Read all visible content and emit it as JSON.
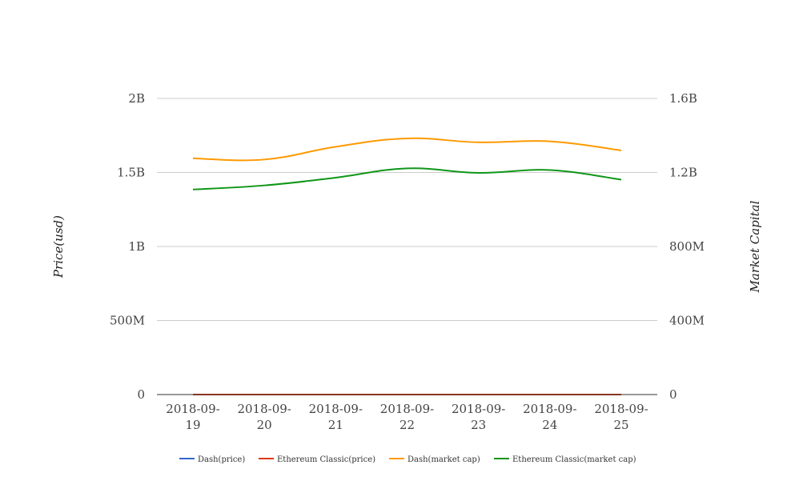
{
  "chart_data": {
    "type": "line",
    "categories": [
      "2018-09-19",
      "2018-09-20",
      "2018-09-21",
      "2018-09-22",
      "2018-09-23",
      "2018-09-24",
      "2018-09-25"
    ],
    "category_labels": [
      [
        "2018-09-",
        "19"
      ],
      [
        "2018-09-",
        "20"
      ],
      [
        "2018-09-",
        "21"
      ],
      [
        "2018-09-",
        "22"
      ],
      [
        "2018-09-",
        "23"
      ],
      [
        "2018-09-",
        "24"
      ],
      [
        "2018-09-",
        "25"
      ]
    ],
    "y_left": {
      "label": "Price(usd)",
      "ylim": [
        0,
        2000000000
      ],
      "ticks": [
        0,
        500000000,
        1000000000,
        1500000000,
        2000000000
      ],
      "tick_labels": [
        "0",
        "500M",
        "1B",
        "1.5B",
        "2B"
      ]
    },
    "y_right": {
      "label": "Market Capital",
      "ylim": [
        0,
        1600000000
      ],
      "ticks": [
        0,
        400000000,
        800000000,
        1200000000,
        1600000000
      ],
      "tick_labels": [
        "0",
        "400M",
        "800M",
        "1.2B",
        "1.6B"
      ]
    },
    "grid": true,
    "legend_position": "bottom",
    "series": [
      {
        "name": "Dash(price)",
        "axis": "left",
        "color": "#3366cc",
        "values": [
          150,
          139,
          156,
          165,
          158,
          149,
          137
        ]
      },
      {
        "name": "Ethereum Classic(price)",
        "axis": "left",
        "color": "#dc3912",
        "values": [
          11.2,
          11.1,
          11.9,
          12.1,
          11.6,
          11.3,
          10.6
        ]
      },
      {
        "name": "Dash(market cap)",
        "axis": "right",
        "color": "#ff9900",
        "values": [
          1276000000,
          1270000000,
          1339000000,
          1384000000,
          1363000000,
          1368000000,
          1319000000
        ]
      },
      {
        "name": "Ethereum Classic(market cap)",
        "axis": "right",
        "color": "#109618",
        "values": [
          1108000000,
          1130000000,
          1172000000,
          1222000000,
          1198000000,
          1213000000,
          1161000000
        ]
      }
    ]
  }
}
